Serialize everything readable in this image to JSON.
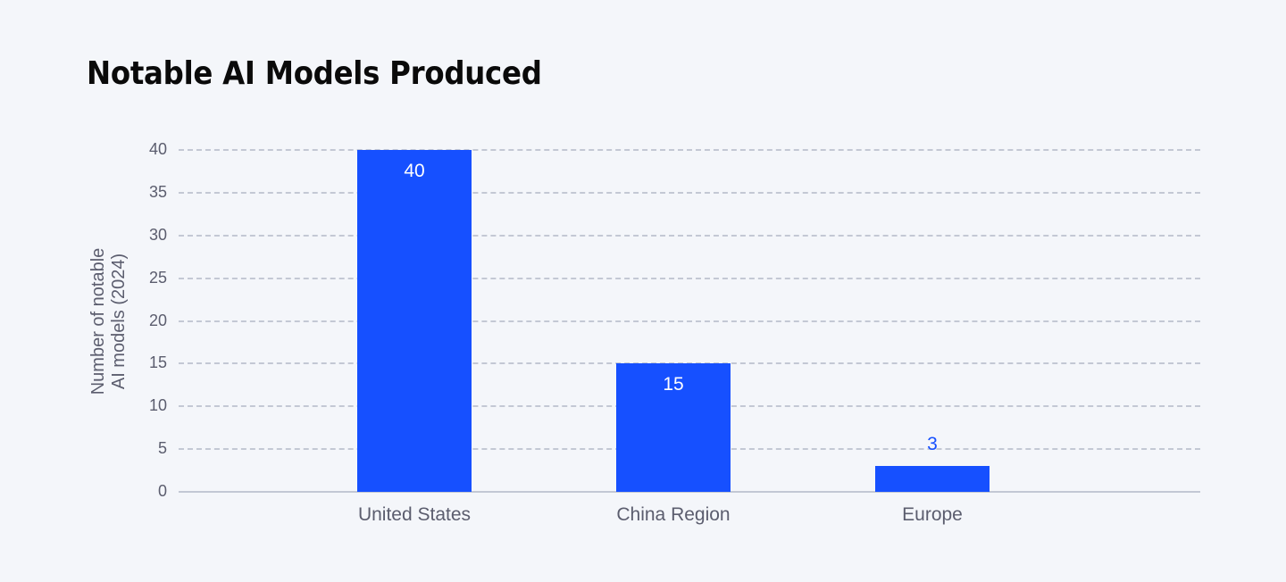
{
  "title": "Notable AI Models Produced",
  "colors": {
    "bar": "#1650ff",
    "grid": "#c3c8d4",
    "text": "#5b5d6e",
    "background": "#f4f6fa"
  },
  "chart_data": {
    "type": "bar",
    "title": "Notable AI Models Produced",
    "xlabel": "",
    "ylabel": "Number of notable AI models (2024)",
    "ylabel_lines": [
      "Number of notable",
      "AI models (2024)"
    ],
    "categories": [
      "United States",
      "China Region",
      "Europe"
    ],
    "values": [
      40,
      15,
      3
    ],
    "value_labels": [
      "40",
      "15",
      "3"
    ],
    "ylim": [
      0,
      40
    ],
    "yticks": [
      "0",
      "5",
      "10",
      "15",
      "20",
      "25",
      "30",
      "35",
      "40"
    ],
    "grid": true,
    "legend": null
  }
}
